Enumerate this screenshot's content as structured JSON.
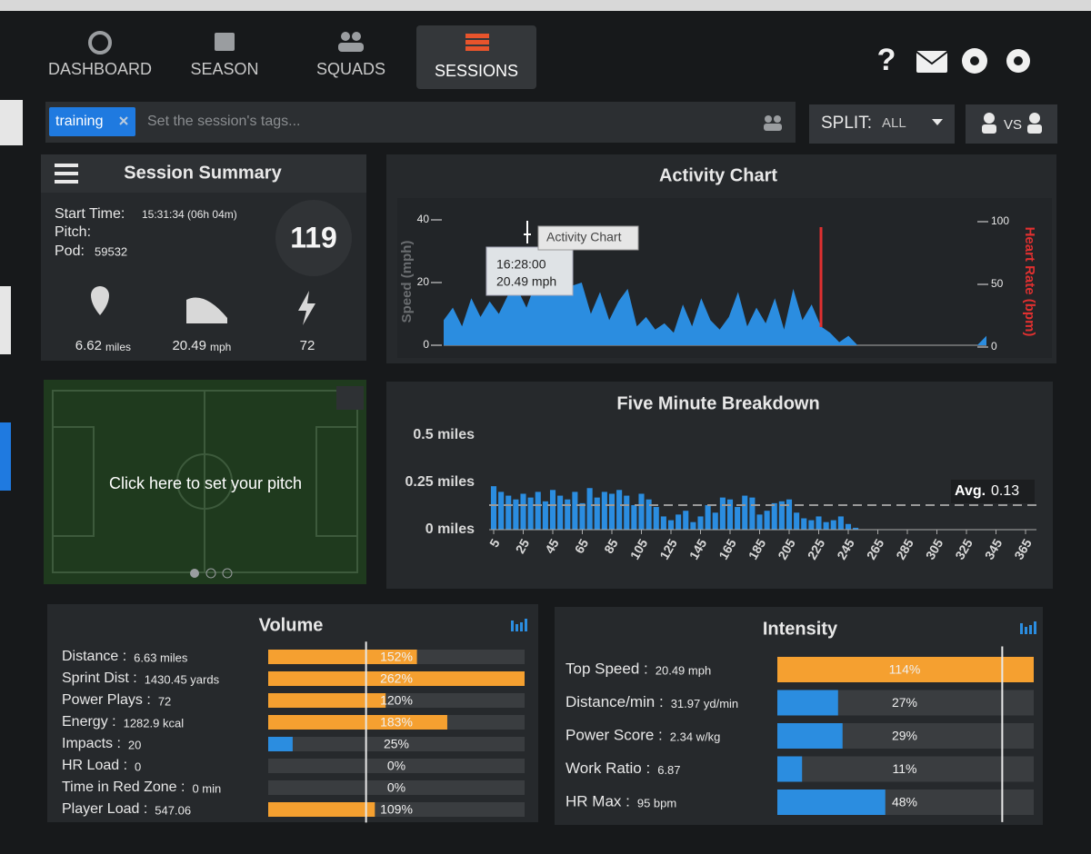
{
  "nav": {
    "items": [
      "DASHBOARD",
      "SEASON",
      "SQUADS",
      "SESSIONS"
    ],
    "help": "?"
  },
  "tag_bar": {
    "tag": "training",
    "placeholder": "Set the session's tags...",
    "split_label": "SPLIT:",
    "split_value": "ALL",
    "compare": "VS"
  },
  "summary": {
    "title": "Session Summary",
    "start_time": {
      "label": "Start Time:",
      "value": "15:31:34 (06h 04m)"
    },
    "pitch_label": "Pitch:",
    "pod": {
      "label": "Pod:",
      "value": "59532"
    },
    "score": 119,
    "stats": [
      {
        "value": 6.62,
        "unit": "miles"
      },
      {
        "value": 20.49,
        "unit": "mph"
      },
      {
        "value": 72
      }
    ]
  },
  "pitch": {
    "prompt": "Click here to set your pitch"
  },
  "activity_chart": {
    "title": "Activity Chart",
    "y_label": "Speed (mph)",
    "y2_label": "Heart Rate (bpm)",
    "ylim": [
      0,
      40
    ],
    "yticks": [
      0,
      20,
      40
    ],
    "y2lim": [
      0,
      100
    ],
    "y2ticks": [
      0,
      50,
      100
    ],
    "speed": {
      "color": "#2b8de0",
      "values": [
        8,
        12,
        6,
        15,
        9,
        14,
        10,
        16,
        18,
        12,
        20,
        19,
        20,
        20,
        19,
        20,
        10,
        17,
        8,
        14,
        18,
        6,
        9,
        5,
        7,
        4,
        13,
        6,
        15,
        8,
        5,
        9,
        17,
        6,
        12,
        7,
        15,
        5,
        18,
        8,
        13,
        6,
        4,
        1,
        3,
        0,
        0,
        0,
        0,
        0,
        0,
        0,
        0,
        0,
        0,
        0,
        0,
        0,
        0,
        3
      ]
    },
    "tooltip": {
      "time": "16:28:00",
      "value": "20.49 mph"
    },
    "hover_label": "Activity Chart"
  },
  "breakdown": {
    "title": "Five Minute Breakdown",
    "color": "#2b8de0",
    "ylim": [
      0,
      0.5
    ],
    "yticks": [
      {
        "value": 0,
        "label": "0 miles"
      },
      {
        "value": 0.25,
        "label": "0.25 miles"
      },
      {
        "value": 0.5,
        "label": "0.5 miles"
      }
    ],
    "xlim": [
      5,
      365
    ],
    "xticks": [
      5,
      25,
      45,
      65,
      85,
      105,
      125,
      145,
      165,
      185,
      205,
      225,
      245,
      265,
      285,
      305,
      325,
      345,
      365
    ],
    "x": [
      5,
      10,
      15,
      20,
      25,
      30,
      35,
      40,
      45,
      50,
      55,
      60,
      65,
      70,
      75,
      80,
      85,
      90,
      95,
      100,
      105,
      110,
      115,
      120,
      125,
      130,
      135,
      140,
      145,
      150,
      155,
      160,
      165,
      170,
      175,
      180,
      185,
      190,
      195,
      200,
      205,
      210,
      215,
      220,
      225,
      230,
      235,
      240,
      245,
      250,
      255,
      260,
      265,
      270,
      275,
      280,
      285,
      290,
      295,
      300,
      305,
      310,
      315,
      320,
      325,
      330,
      335,
      340,
      345,
      350,
      355,
      360,
      365
    ],
    "values": [
      0.23,
      0.2,
      0.18,
      0.16,
      0.19,
      0.17,
      0.2,
      0.15,
      0.21,
      0.18,
      0.16,
      0.2,
      0.14,
      0.22,
      0.17,
      0.2,
      0.19,
      0.21,
      0.18,
      0.13,
      0.19,
      0.16,
      0.12,
      0.07,
      0.05,
      0.08,
      0.1,
      0.04,
      0.07,
      0.13,
      0.09,
      0.17,
      0.16,
      0.12,
      0.18,
      0.17,
      0.08,
      0.1,
      0.14,
      0.15,
      0.16,
      0.09,
      0.06,
      0.05,
      0.07,
      0.04,
      0.05,
      0.07,
      0.03,
      0.01,
      0,
      0,
      0,
      0,
      0,
      0,
      0,
      0,
      0,
      0,
      0,
      0,
      0,
      0,
      0,
      0,
      0,
      0,
      0,
      0,
      0,
      0,
      0
    ],
    "average": {
      "label": "Avg.",
      "value": 0.13
    }
  },
  "volume": {
    "title": "Volume",
    "xlim": [
      0,
      262
    ],
    "reference": 100,
    "colors": {
      "over": "#f5a030",
      "under": "#2b8de0"
    },
    "rows": [
      {
        "label": "Distance :",
        "value": "6.63 miles",
        "percent": 152,
        "percent_label": "152%"
      },
      {
        "label": "Sprint Dist :",
        "value": "1430.45 yards",
        "percent": 262,
        "percent_label": "262%"
      },
      {
        "label": "Power Plays :",
        "value": "72",
        "percent": 120,
        "percent_label": "120%"
      },
      {
        "label": "Energy :",
        "value": "1282.9 kcal",
        "percent": 183,
        "percent_label": "183%"
      },
      {
        "label": "Impacts :",
        "value": "20",
        "percent": 25,
        "percent_label": "25%"
      },
      {
        "label": "HR Load :",
        "value": "0",
        "percent": 0,
        "percent_label": "0%"
      },
      {
        "label": "Time in Red Zone :",
        "value": "0 min",
        "percent": 0,
        "percent_label": "0%"
      },
      {
        "label": "Player Load :",
        "value": "547.06",
        "percent": 109,
        "percent_label": "109%"
      }
    ]
  },
  "intensity": {
    "title": "Intensity",
    "xlim": [
      0,
      114
    ],
    "reference": 100,
    "colors": {
      "over": "#f5a030",
      "under": "#2b8de0"
    },
    "rows": [
      {
        "label": "Top Speed :",
        "value": "20.49 mph",
        "percent": 114,
        "percent_label": "114%"
      },
      {
        "label": "Distance/min :",
        "value": "31.97 yd/min",
        "percent": 27,
        "percent_label": "27%"
      },
      {
        "label": "Power Score :",
        "value": "2.34 w/kg",
        "percent": 29,
        "percent_label": "29%"
      },
      {
        "label": "Work Ratio :",
        "value": "6.87",
        "percent": 11,
        "percent_label": "11%"
      },
      {
        "label": "HR Max :",
        "value": "95 bpm",
        "percent": 48,
        "percent_label": "48%"
      }
    ]
  }
}
